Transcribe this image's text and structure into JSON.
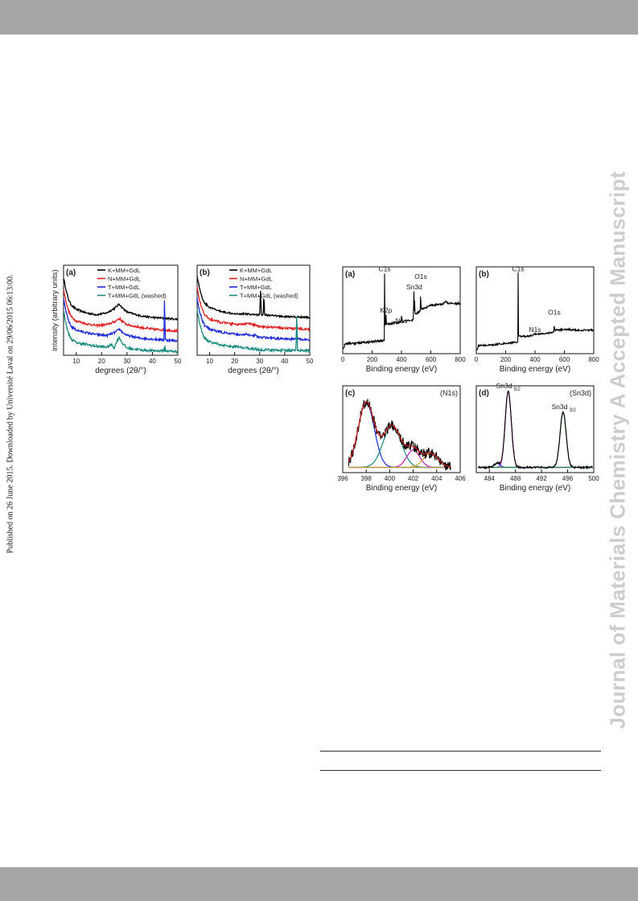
{
  "side_text": {
    "published": "Published on 26 June 2015. Downloaded by Université Laval on 29/06/2015 06:13:00.",
    "journal": "Journal of Materials Chemistry A Accepted Manuscript"
  },
  "colors": {
    "band": "#a6a6a6",
    "watermark": "#cdcdcd"
  },
  "chart_data": [
    {
      "type": "line",
      "panel_label": "(a)",
      "xlabel": "degrees (2θ/°)",
      "ylabel": "intensity (arbitrary units)",
      "xlim": [
        5,
        50
      ],
      "xticks": [
        "10",
        "20",
        "30",
        "40",
        "50"
      ],
      "legend_position": "top-right",
      "series": [
        {
          "name": "K+MM+GdL",
          "color": "#000000",
          "offset": 0.4,
          "amp": 0.48,
          "noise": 0.01,
          "points": [
            [
              5,
              0.46
            ],
            [
              6,
              0.32
            ],
            [
              7,
              0.22
            ],
            [
              8,
              0.16
            ],
            [
              10,
              0.11
            ],
            [
              14,
              0.07
            ],
            [
              18,
              0.05
            ],
            [
              22,
              0.07
            ],
            [
              25,
              0.12
            ],
            [
              27,
              0.17
            ],
            [
              28,
              0.13
            ],
            [
              30,
              0.08
            ],
            [
              35,
              0.04
            ],
            [
              40,
              0.02
            ],
            [
              45,
              0.01
            ],
            [
              50,
              0
            ]
          ]
        },
        {
          "name": "N+MM+GdL",
          "color": "#e02020",
          "offset": 0.27,
          "amp": 0.48,
          "noise": 0.012,
          "points": [
            [
              5,
              0.46
            ],
            [
              6,
              0.32
            ],
            [
              7,
              0.22
            ],
            [
              8,
              0.16
            ],
            [
              10,
              0.11
            ],
            [
              14,
              0.08
            ],
            [
              18,
              0.06
            ],
            [
              22,
              0.07
            ],
            [
              25,
              0.1
            ],
            [
              27,
              0.14
            ],
            [
              28,
              0.11
            ],
            [
              30,
              0.07
            ],
            [
              35,
              0.04
            ],
            [
              40,
              0.02
            ],
            [
              45,
              0.01
            ],
            [
              50,
              0
            ]
          ]
        },
        {
          "name": "T+MM+GdL",
          "color": "#1c2bd6",
          "offset": 0.16,
          "amp": 0.48,
          "noise": 0.012,
          "points": [
            [
              5,
              0.46
            ],
            [
              6,
              0.32
            ],
            [
              7,
              0.22
            ],
            [
              8,
              0.16
            ],
            [
              10,
              0.12
            ],
            [
              14,
              0.09
            ],
            [
              18,
              0.07
            ],
            [
              22,
              0.06
            ],
            [
              25,
              0.09
            ],
            [
              27,
              0.13
            ],
            [
              28,
              0.1
            ],
            [
              30,
              0.06
            ],
            [
              35,
              0.03
            ],
            [
              40,
              0.02
            ],
            [
              44.6,
              0.01
            ],
            [
              44.8,
              0.6
            ],
            [
              45,
              0.01
            ],
            [
              50,
              0
            ]
          ]
        },
        {
          "name": "T+MM+GdL (washed)",
          "color": "#1a8a80",
          "offset": 0.04,
          "amp": 0.48,
          "noise": 0.014,
          "points": [
            [
              5,
              0.46
            ],
            [
              6,
              0.3
            ],
            [
              7,
              0.2
            ],
            [
              8,
              0.14
            ],
            [
              10,
              0.1
            ],
            [
              14,
              0.08
            ],
            [
              18,
              0.06
            ],
            [
              22,
              0.05
            ],
            [
              24,
              0.08
            ],
            [
              25,
              0.04
            ],
            [
              26,
              0.12
            ],
            [
              27,
              0.16
            ],
            [
              28,
              0.1
            ],
            [
              30,
              0.04
            ],
            [
              35,
              0.02
            ],
            [
              40,
              0.01
            ],
            [
              44.7,
              0.01
            ],
            [
              44.9,
              0.08
            ],
            [
              45.1,
              0.01
            ],
            [
              50,
              0
            ]
          ]
        }
      ]
    },
    {
      "type": "line",
      "panel_label": "(b)",
      "xlabel": "degrees (2θ/°)",
      "ylabel": "",
      "xlim": [
        5,
        50
      ],
      "xticks": [
        "10",
        "20",
        "30",
        "40",
        "50"
      ],
      "legend_position": "top-right",
      "series": [
        {
          "name": "K+MM+GdL",
          "color": "#000000",
          "offset": 0.42,
          "amp": 0.46,
          "noise": 0.01,
          "points": [
            [
              5,
              0.46
            ],
            [
              6,
              0.32
            ],
            [
              7,
              0.22
            ],
            [
              8,
              0.16
            ],
            [
              10,
              0.11
            ],
            [
              14,
              0.07
            ],
            [
              18,
              0.05
            ],
            [
              22,
              0.04
            ],
            [
              25,
              0.04
            ],
            [
              28,
              0.03
            ],
            [
              30,
              0.03
            ],
            [
              30.3,
              0.3
            ],
            [
              30.7,
              0.03
            ],
            [
              31.4,
              0.03
            ],
            [
              31.7,
              0.26
            ],
            [
              32,
              0.03
            ],
            [
              35,
              0.02
            ],
            [
              40,
              0.01
            ],
            [
              50,
              0
            ]
          ]
        },
        {
          "name": "N+MM+GdL",
          "color": "#e02020",
          "offset": 0.29,
          "amp": 0.46,
          "noise": 0.012,
          "points": [
            [
              5,
              0.46
            ],
            [
              6,
              0.32
            ],
            [
              7,
              0.22
            ],
            [
              8,
              0.16
            ],
            [
              10,
              0.11
            ],
            [
              14,
              0.08
            ],
            [
              18,
              0.06
            ],
            [
              22,
              0.05
            ],
            [
              25,
              0.06
            ],
            [
              28,
              0.05
            ],
            [
              30,
              0.03
            ],
            [
              35,
              0.02
            ],
            [
              40,
              0.01
            ],
            [
              50,
              0
            ]
          ]
        },
        {
          "name": "T+MM+GdL",
          "color": "#1c2bd6",
          "offset": 0.17,
          "amp": 0.46,
          "noise": 0.012,
          "points": [
            [
              5,
              0.46
            ],
            [
              6,
              0.32
            ],
            [
              7,
              0.22
            ],
            [
              8,
              0.16
            ],
            [
              10,
              0.12
            ],
            [
              14,
              0.09
            ],
            [
              18,
              0.07
            ],
            [
              22,
              0.06
            ],
            [
              25,
              0.06
            ],
            [
              28,
              0.05
            ],
            [
              30,
              0.03
            ],
            [
              35,
              0.02
            ],
            [
              40,
              0.01
            ],
            [
              44.6,
              0.01
            ],
            [
              44.8,
              0.2
            ],
            [
              45,
              0.01
            ],
            [
              50,
              0
            ]
          ]
        },
        {
          "name": "T+MM+GdL (washed)",
          "color": "#1a8a80",
          "offset": 0.05,
          "amp": 0.46,
          "noise": 0.014,
          "points": [
            [
              5,
              0.46
            ],
            [
              6,
              0.3
            ],
            [
              7,
              0.2
            ],
            [
              8,
              0.14
            ],
            [
              10,
              0.1
            ],
            [
              14,
              0.07
            ],
            [
              18,
              0.05
            ],
            [
              22,
              0.04
            ],
            [
              25,
              0.03
            ],
            [
              28,
              0.02
            ],
            [
              30,
              0.01
            ],
            [
              35,
              0.01
            ],
            [
              40,
              0.005
            ],
            [
              44.5,
              0.005
            ],
            [
              44.8,
              0.46
            ],
            [
              45.1,
              0.005
            ],
            [
              50,
              0
            ]
          ]
        }
      ]
    },
    {
      "type": "line",
      "panel_label": "(a)",
      "xlabel": "Binding energy (eV)",
      "xlim": [
        0,
        800
      ],
      "xticks": [
        "0",
        "200",
        "400",
        "600",
        "800"
      ],
      "annotations": [
        {
          "text": "C1s",
          "x": 285,
          "y": 0.95
        },
        {
          "text": "K2p",
          "x": 295,
          "y": 0.47
        },
        {
          "text": "N1s",
          "x": 400,
          "y": 0.35
        },
        {
          "text": "Sn3d",
          "x": 487,
          "y": 0.74
        },
        {
          "text": "O1s",
          "x": 531,
          "y": 0.86
        }
      ],
      "series": [
        {
          "name": "",
          "color": "#000000",
          "noise": 0.012,
          "points": [
            [
              0,
              0.06
            ],
            [
              10,
              0.06
            ],
            [
              12,
              0.11
            ],
            [
              100,
              0.12
            ],
            [
              200,
              0.14
            ],
            [
              275,
              0.15
            ],
            [
              283,
              0.15
            ],
            [
              285,
              0.93
            ],
            [
              287,
              0.34
            ],
            [
              292,
              0.33
            ],
            [
              295,
              0.44
            ],
            [
              298,
              0.34
            ],
            [
              340,
              0.35
            ],
            [
              380,
              0.36
            ],
            [
              398,
              0.37
            ],
            [
              400,
              0.43
            ],
            [
              402,
              0.37
            ],
            [
              440,
              0.38
            ],
            [
              480,
              0.39
            ],
            [
              485,
              0.72
            ],
            [
              487,
              0.46
            ],
            [
              490,
              0.6
            ],
            [
              492,
              0.46
            ],
            [
              520,
              0.48
            ],
            [
              529,
              0.5
            ],
            [
              531,
              0.84
            ],
            [
              533,
              0.52
            ],
            [
              560,
              0.52
            ],
            [
              600,
              0.56
            ],
            [
              680,
              0.57
            ],
            [
              700,
              0.6
            ],
            [
              720,
              0.58
            ],
            [
              760,
              0.58
            ],
            [
              800,
              0.58
            ]
          ]
        }
      ]
    },
    {
      "type": "line",
      "panel_label": "(b)",
      "xlabel": "Binding energy (eV)",
      "xlim": [
        0,
        800
      ],
      "xticks": [
        "0",
        "200",
        "400",
        "600",
        "800"
      ],
      "annotations": [
        {
          "text": "C1s",
          "x": 285,
          "y": 0.95
        },
        {
          "text": "N1s",
          "x": 400,
          "y": 0.25
        },
        {
          "text": "O1s",
          "x": 531,
          "y": 0.45
        }
      ],
      "series": [
        {
          "name": "",
          "color": "#000000",
          "noise": 0.01,
          "points": [
            [
              0,
              0.05
            ],
            [
              10,
              0.05
            ],
            [
              12,
              0.09
            ],
            [
              100,
              0.1
            ],
            [
              200,
              0.12
            ],
            [
              275,
              0.13
            ],
            [
              283,
              0.13
            ],
            [
              285,
              0.93
            ],
            [
              287,
              0.2
            ],
            [
              300,
              0.2
            ],
            [
              350,
              0.2
            ],
            [
              398,
              0.22
            ],
            [
              400,
              0.24
            ],
            [
              402,
              0.22
            ],
            [
              450,
              0.23
            ],
            [
              500,
              0.24
            ],
            [
              529,
              0.25
            ],
            [
              531,
              0.4
            ],
            [
              533,
              0.27
            ],
            [
              600,
              0.28
            ],
            [
              700,
              0.27
            ],
            [
              800,
              0.27
            ]
          ]
        }
      ]
    },
    {
      "type": "line",
      "panel_label": "(c)",
      "corner_label": "(N1s)",
      "xlabel": "Binding energy (eV)",
      "xlim": [
        396,
        406
      ],
      "xticks": [
        "396",
        "398",
        "400",
        "402",
        "404",
        "406"
      ],
      "raw": {
        "color": "#000000",
        "noise": 0.06,
        "range": [
          396.5,
          405.2
        ]
      },
      "fit": {
        "color": "#e02020"
      },
      "baseline": {
        "color": "#b59a2a",
        "value": 0.06
      },
      "components": [
        {
          "color": "#1c2bd6",
          "center": 398.0,
          "fwhm": 1.6,
          "height": 0.75
        },
        {
          "color": "#1a8a80",
          "center": 400.2,
          "fwhm": 1.8,
          "height": 0.48
        },
        {
          "color": "#c020c0",
          "center": 402.0,
          "fwhm": 1.3,
          "height": 0.2
        },
        {
          "color": "#d4a020",
          "center": 403.5,
          "fwhm": 1.5,
          "height": 0.16
        }
      ]
    },
    {
      "type": "line",
      "panel_label": "(d)",
      "corner_label": "(Sn3d)",
      "xlabel": "Binding energy (eV)",
      "xlim": [
        482,
        500
      ],
      "xticks": [
        "484",
        "488",
        "492",
        "496",
        "500"
      ],
      "annotations": [
        {
          "text": "Sn3d",
          "sub": "5/2",
          "x": 486.9,
          "y": 0.97
        },
        {
          "text": "Sn3d",
          "sub": "3/2",
          "x": 495.4,
          "y": 0.73
        }
      ],
      "raw": {
        "color": "#000000",
        "noise": 0.012,
        "range": [
          482.3,
          499.8
        ]
      },
      "baseline": {
        "color": "#1a8a3a",
        "value": 0.06
      },
      "components": [
        {
          "color": "#d020d0",
          "center": 486.9,
          "fwhm": 1.1,
          "height": 0.88
        },
        {
          "color": "#2c8c2c",
          "center": 495.3,
          "fwhm": 1.1,
          "height": 0.64
        },
        {
          "color": "#1c2bd6",
          "center": 485.2,
          "fwhm": 1.0,
          "height": 0.05
        }
      ]
    }
  ]
}
